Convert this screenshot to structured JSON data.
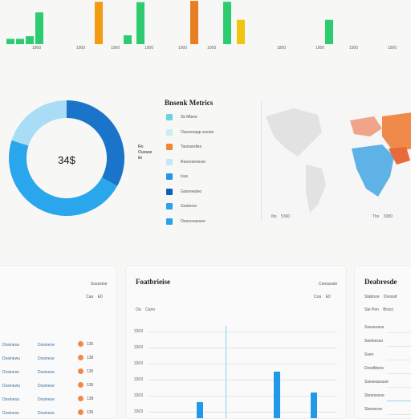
{
  "top_chart": {
    "ticks": [
      "1800",
      "1900",
      "1900",
      "1900",
      "1000",
      "1000",
      "1800",
      "1900",
      "1900",
      "1900"
    ],
    "bars": [
      {
        "color": "#2ecc71",
        "value": 0.12
      },
      {
        "color": "#2ecc71",
        "value": 0.12
      },
      {
        "color": "#2ecc71",
        "value": 0.18
      },
      {
        "color": "#2ecc71",
        "value": 0.72
      },
      {
        "color": "#f39c12",
        "value": 0.96
      },
      {
        "color": "#2ecc71",
        "value": 0.2
      },
      {
        "color": "#2ecc71",
        "value": 0.95
      },
      {
        "color": "#e67e22",
        "value": 0.98
      },
      {
        "color": "#2ecc71",
        "value": 0.96
      },
      {
        "color": "#f1c40f",
        "value": 0.55
      },
      {
        "color": "#2ecc71",
        "value": 0.55
      }
    ]
  },
  "donut": {
    "center_label": "34$",
    "side_label_lines": [
      "Ro",
      "Ounsse",
      "ito"
    ],
    "segments": [
      {
        "color": "#1a74c9",
        "value": 0.33
      },
      {
        "color": "#2aa6ec",
        "value": 0.47
      },
      {
        "color": "#a9dcf5",
        "value": 0.2
      }
    ]
  },
  "legend": {
    "title": "Bnsenk Metrics",
    "items": [
      {
        "color": "#6fd1e3",
        "label": "Sk Mtsne"
      },
      {
        "color": "#c8eef5",
        "label": "Oacoesapp sseste"
      },
      {
        "color": "#f28537",
        "label": "Tasiosedies"
      },
      {
        "color": "#bfe9f7",
        "label": "Rooreseoessr"
      },
      {
        "color": "#2196e8",
        "label": "Isus"
      },
      {
        "color": "#0f5fb0",
        "label": "Ganreesteo"
      },
      {
        "color": "#2aa2ea",
        "label": "Gestoosr"
      },
      {
        "color": "#2aa2ea",
        "label": "Oeseceaesee"
      }
    ]
  },
  "map": {
    "labels": [
      "Ibs",
      "5360",
      "Tbs",
      "3380"
    ]
  },
  "left_card": {
    "header_label": "Sossstne",
    "filter": [
      "Caa",
      "E0"
    ],
    "rows": [
      {
        "label": "Dosinesa",
        "value": "Dosinene",
        "num": "135"
      },
      {
        "label": "Dosinewu",
        "value": "Dosinese",
        "num": "138"
      },
      {
        "label": "Dosinese",
        "value": "Dosinese",
        "num": "135"
      },
      {
        "label": "Dosinewu",
        "value": "Dosinese",
        "num": "136"
      },
      {
        "label": "Dosinesa",
        "value": "Dosinese",
        "num": "138"
      },
      {
        "label": "Dosinese",
        "value": "Dosinese",
        "num": "135"
      }
    ]
  },
  "mid_card": {
    "title": "Foatbrieise",
    "header_label": "Ceosssste",
    "filter": [
      "Coa",
      "E0"
    ],
    "legend": [
      "Ou",
      "Cano"
    ],
    "ticks": [
      "3303",
      "3303",
      "3303",
      "3303",
      "3303",
      "3303"
    ],
    "bars": [
      0.2,
      0.58,
      0.32
    ]
  },
  "right_card": {
    "title": "Deabresde",
    "filter": [
      "Stabooe",
      "Dsosstr"
    ],
    "legend": [
      "Ste Pen",
      "Brsco"
    ],
    "rows": [
      "Sseseosse",
      "Seelsesso",
      "Sseo",
      "Dosdbteos",
      "Sseseassuse",
      "Sboessove",
      "Sbeesove"
    ]
  }
}
